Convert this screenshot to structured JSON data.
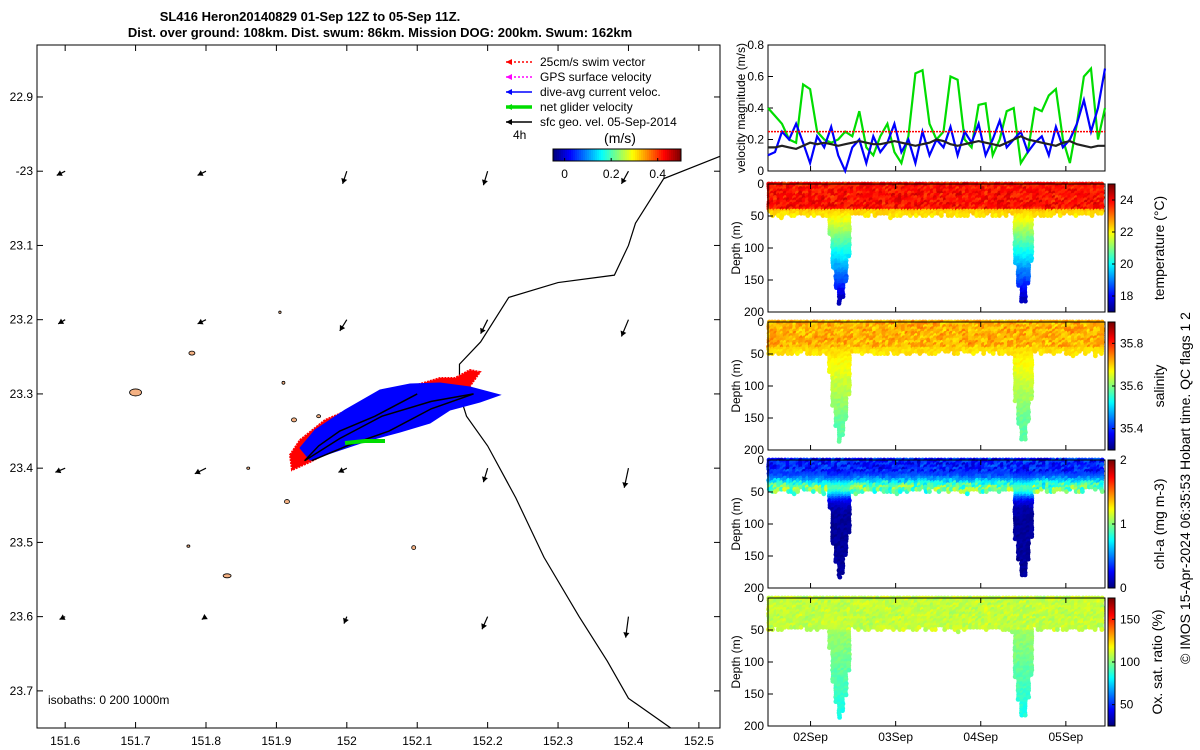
{
  "title_line1": "SL416 Heron20140829 01-Sep 12Z to 05-Sep 11Z.",
  "title_line2": "Dist. over ground: 108km. Dist. swum: 86km. Mission DOG: 200km. Swum: 162km",
  "credit": "© IMOS 15-Apr-2024 06:35:53 Hobart time. QC flags 1  2",
  "colors": {
    "swim": "#ff0000",
    "gps": "#ff00ff",
    "dive": "#0000ff",
    "net": "#00dd00",
    "geo": "#000000",
    "land": "#f4b183",
    "ocean": "#ffffff"
  },
  "chart_data": [
    {
      "type": "map",
      "lon_ticks": [
        "151.6",
        "151.7",
        "151.8",
        "151.9",
        "152",
        "152.1",
        "152.2",
        "152.3",
        "152.4",
        "152.5"
      ],
      "lat_ticks": [
        "22.9",
        "-23",
        "23.1",
        "23.2",
        "23.3",
        "23.4",
        "23.5",
        "23.6",
        "23.7"
      ],
      "lon_range": [
        151.56,
        152.53
      ],
      "lat_range": [
        -23.75,
        -22.83
      ],
      "legend": [
        {
          "label": "25cm/s swim vector",
          "color": "#ff0000",
          "style": "dotted"
        },
        {
          "label": "GPS surface velocity",
          "color": "#ff00ff",
          "style": "dotted"
        },
        {
          "label": "dive-avg current veloc.",
          "color": "#0000ff",
          "style": "solid"
        },
        {
          "label": "net glider velocity",
          "color": "#00dd00",
          "style": "thick"
        },
        {
          "label": "sfc geo. vel. 05-Sep-2014",
          "color": "#000000",
          "style": "solid"
        }
      ],
      "colorbar_unit": "(m/s)",
      "colorbar_ticks": [
        "0",
        "0.2",
        "0.4"
      ],
      "colorbar_range": [
        -0.05,
        0.5
      ],
      "time_label": "4h",
      "isobaths_label": "isobaths: 0   200  1000m",
      "track": [
        [
          152.1,
          -23.3
        ],
        [
          152.04,
          -23.33
        ],
        [
          151.99,
          -23.35
        ],
        [
          151.96,
          -23.37
        ],
        [
          151.94,
          -23.39
        ],
        [
          151.99,
          -23.36
        ],
        [
          152.05,
          -23.33
        ],
        [
          152.12,
          -23.31
        ],
        [
          152.18,
          -23.3
        ],
        [
          152.12,
          -23.32
        ],
        [
          152.06,
          -23.35
        ],
        [
          152.0,
          -23.37
        ],
        [
          151.95,
          -23.39
        ]
      ],
      "isobath_1000": [
        [
          152.53,
          -22.98
        ],
        [
          152.45,
          -23.01
        ],
        [
          152.41,
          -23.07
        ],
        [
          152.4,
          -23.1
        ],
        [
          152.38,
          -23.14
        ],
        [
          152.3,
          -23.15
        ],
        [
          152.23,
          -23.17
        ],
        [
          152.19,
          -23.23
        ],
        [
          152.16,
          -23.26
        ],
        [
          152.16,
          -23.3
        ],
        [
          152.17,
          -23.33
        ],
        [
          152.2,
          -23.37
        ],
        [
          152.24,
          -23.44
        ],
        [
          152.28,
          -23.52
        ],
        [
          152.33,
          -23.6
        ],
        [
          152.37,
          -23.66
        ],
        [
          152.4,
          -23.71
        ],
        [
          152.46,
          -23.75
        ]
      ],
      "geo_vectors": [
        {
          "lon": 151.6,
          "lat": -23.0,
          "u": -0.6,
          "v": -0.3
        },
        {
          "lon": 151.8,
          "lat": -23.0,
          "u": -0.6,
          "v": -0.3
        },
        {
          "lon": 152.0,
          "lat": -23.0,
          "u": -0.3,
          "v": -0.9
        },
        {
          "lon": 152.2,
          "lat": -23.0,
          "u": -0.3,
          "v": -1.0
        },
        {
          "lon": 152.4,
          "lat": -23.0,
          "u": -0.5,
          "v": -0.9
        },
        {
          "lon": 151.6,
          "lat": -23.2,
          "u": -0.5,
          "v": -0.3
        },
        {
          "lon": 151.8,
          "lat": -23.2,
          "u": -0.6,
          "v": -0.3
        },
        {
          "lon": 152.0,
          "lat": -23.2,
          "u": -0.5,
          "v": -0.8
        },
        {
          "lon": 152.2,
          "lat": -23.2,
          "u": -0.5,
          "v": -1.0
        },
        {
          "lon": 152.4,
          "lat": -23.2,
          "u": -0.5,
          "v": -1.2
        },
        {
          "lon": 151.6,
          "lat": -23.4,
          "u": -0.7,
          "v": -0.3
        },
        {
          "lon": 151.8,
          "lat": -23.4,
          "u": -0.8,
          "v": -0.4
        },
        {
          "lon": 152.0,
          "lat": -23.4,
          "u": -0.6,
          "v": -0.3
        },
        {
          "lon": 152.2,
          "lat": -23.4,
          "u": -0.3,
          "v": -1.0
        },
        {
          "lon": 152.4,
          "lat": -23.4,
          "u": -0.3,
          "v": -1.4
        },
        {
          "lon": 151.6,
          "lat": -23.6,
          "u": -0.4,
          "v": -0.2
        },
        {
          "lon": 151.8,
          "lat": -23.6,
          "u": -0.3,
          "v": -0.2
        },
        {
          "lon": 152.0,
          "lat": -23.6,
          "u": -0.2,
          "v": -0.5
        },
        {
          "lon": 152.2,
          "lat": -23.6,
          "u": -0.4,
          "v": -0.9
        },
        {
          "lon": 152.4,
          "lat": -23.6,
          "u": -0.2,
          "v": -1.5
        }
      ]
    },
    {
      "type": "line",
      "ylabel": "velocity magnitude (m/s)",
      "ylim": [
        0,
        0.8
      ],
      "y_ticks": [
        "0",
        "0.2",
        "0.4",
        "0.6",
        "0.8"
      ],
      "x": [
        0,
        1,
        2,
        3,
        4,
        5,
        6,
        7,
        8,
        9,
        10,
        11,
        12,
        13,
        14,
        15,
        16,
        17,
        18,
        19,
        20,
        21,
        22,
        23,
        24,
        25,
        26,
        27,
        28,
        29,
        30,
        31,
        32,
        33,
        34,
        35,
        36,
        37,
        38,
        39,
        40,
        41,
        42,
        43,
        44,
        45,
        46,
        47,
        48
      ],
      "series": [
        {
          "name": "net glider velocity",
          "color": "#00dd00",
          "values": [
            0.4,
            0.35,
            0.3,
            0.2,
            0.18,
            0.55,
            0.52,
            0.25,
            0.2,
            0.18,
            0.2,
            0.25,
            0.22,
            0.38,
            0.15,
            0.1,
            0.22,
            0.3,
            0.12,
            0.05,
            0.22,
            0.62,
            0.64,
            0.3,
            0.2,
            0.25,
            0.6,
            0.58,
            0.2,
            0.15,
            0.42,
            0.43,
            0.1,
            0.2,
            0.38,
            0.4,
            0.05,
            0.12,
            0.4,
            0.38,
            0.48,
            0.52,
            0.2,
            0.05,
            0.3,
            0.6,
            0.65,
            0.2,
            0.4
          ]
        },
        {
          "name": "dive-avg current veloc.",
          "color": "#0000ff",
          "values": [
            0.1,
            0.12,
            0.25,
            0.2,
            0.3,
            0.18,
            0.05,
            0.22,
            0.15,
            0.28,
            0.1,
            0.0,
            0.15,
            0.2,
            0.05,
            0.22,
            0.12,
            0.18,
            0.3,
            0.12,
            0.2,
            0.05,
            0.25,
            0.1,
            0.2,
            0.15,
            0.28,
            0.1,
            0.25,
            0.18,
            0.3,
            0.1,
            0.2,
            0.32,
            0.15,
            0.2,
            0.25,
            0.12,
            0.18,
            0.22,
            0.1,
            0.28,
            0.15,
            0.2,
            0.3,
            0.45,
            0.25,
            0.4,
            0.65
          ]
        },
        {
          "name": "sfc geo. vel.",
          "color": "#222222",
          "values": [
            0.15,
            0.15,
            0.16,
            0.15,
            0.14,
            0.16,
            0.18,
            0.17,
            0.18,
            0.17,
            0.16,
            0.17,
            0.18,
            0.19,
            0.18,
            0.17,
            0.17,
            0.18,
            0.19,
            0.18,
            0.17,
            0.16,
            0.17,
            0.18,
            0.2,
            0.19,
            0.17,
            0.16,
            0.17,
            0.18,
            0.19,
            0.18,
            0.17,
            0.16,
            0.18,
            0.2,
            0.22,
            0.2,
            0.19,
            0.18,
            0.17,
            0.16,
            0.18,
            0.19,
            0.17,
            0.16,
            0.15,
            0.16,
            0.16
          ]
        },
        {
          "name": "25cm/s swim vector",
          "color": "#ff0000",
          "values": [
            0.25,
            0.25,
            0.25,
            0.25,
            0.25,
            0.25,
            0.25,
            0.25,
            0.25,
            0.25,
            0.25,
            0.25,
            0.25,
            0.25,
            0.25,
            0.25,
            0.25,
            0.25,
            0.25,
            0.25,
            0.25,
            0.25,
            0.25,
            0.25,
            0.25,
            0.25,
            0.25,
            0.25,
            0.25,
            0.25,
            0.25,
            0.25,
            0.25,
            0.25,
            0.25,
            0.25,
            0.25,
            0.25,
            0.25,
            0.25,
            0.25,
            0.25,
            0.25,
            0.25,
            0.25,
            0.25,
            0.25,
            0.25,
            0.25
          ]
        }
      ]
    },
    {
      "type": "heatmap",
      "variable": "temperature (°C)",
      "ylabel": "Depth (m)",
      "y_ticks": [
        "0",
        "50",
        "100",
        "150",
        "200"
      ],
      "cb_ticks": [
        "18",
        "20",
        "22",
        "24"
      ],
      "cb_range": [
        17,
        25
      ],
      "surface_value": 23.5,
      "deep_value": 17.5,
      "base_value": 22.5
    },
    {
      "type": "heatmap",
      "variable": "salinity",
      "ylabel": "Depth (m)",
      "y_ticks": [
        "0",
        "50",
        "100",
        "150",
        "200"
      ],
      "cb_ticks": [
        "35.4",
        "35.6",
        "35.8"
      ],
      "cb_range": [
        35.3,
        35.9
      ],
      "surface_value": 35.72,
      "deep_value": 35.58,
      "base_value": 35.7
    },
    {
      "type": "heatmap",
      "variable": "chl-a (mg m-3)",
      "ylabel": "Depth (m)",
      "y_ticks": [
        "0",
        "50",
        "100",
        "150",
        "200"
      ],
      "cb_ticks": [
        "0",
        "1",
        "2"
      ],
      "cb_range": [
        0,
        2
      ],
      "surface_value": 0.15,
      "deep_value": 0.05,
      "base_value": 0.3,
      "max_value": 0.9
    },
    {
      "type": "heatmap",
      "variable": "Ox. sat. ratio (%)",
      "ylabel": "Depth (m)",
      "y_ticks": [
        "0",
        "50",
        "100",
        "150",
        "200"
      ],
      "cb_ticks": [
        "50",
        "100",
        "150"
      ],
      "cb_range": [
        25,
        175
      ],
      "surface_value": 110,
      "deep_value": 85,
      "base_value": 105
    }
  ],
  "time_axis": {
    "ticks": [
      "02Sep",
      "03Sep",
      "04Sep",
      "05Sep"
    ],
    "tick_days": [
      2,
      3,
      4,
      5
    ],
    "range_days": [
      1.5,
      5.46
    ],
    "dives": [
      {
        "center": 2.35,
        "width": 0.26
      },
      {
        "center": 4.5,
        "width": 0.26
      }
    ]
  }
}
